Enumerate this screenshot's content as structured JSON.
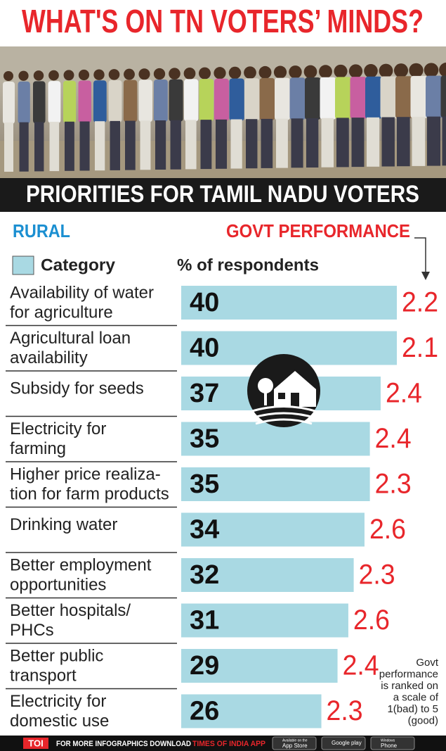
{
  "chart_data": {
    "type": "bar",
    "title": "WHAT'S ON TN VOTERS’ MINDS?",
    "subtitle": "PRIORITIES FOR TAMIL NADU VOTERS",
    "section": "RURAL",
    "category_label": "Category",
    "categories": [
      [
        "Availability of water",
        "for agriculture"
      ],
      [
        "Agricultural loan",
        "availability"
      ],
      [
        "Subsidy for seeds"
      ],
      [
        "Electricity for",
        "farming"
      ],
      [
        "Higher price realiza-",
        "tion for farm products"
      ],
      [
        "Drinking water"
      ],
      [
        "Better employment",
        "opportunities"
      ],
      [
        "Better hospitals/",
        "PHCs"
      ],
      [
        "Better public",
        "transport"
      ],
      [
        "Electricity for",
        "domestic use"
      ]
    ],
    "series": [
      {
        "name": "% of respondents",
        "color": "#a9d9e3",
        "values": [
          40,
          40,
          37,
          35,
          35,
          34,
          32,
          31,
          29,
          26
        ]
      },
      {
        "name": "GOVT PERFORMANCE",
        "color": "#e8262b",
        "values": [
          2.2,
          2.1,
          2.4,
          2.4,
          2.3,
          2.6,
          2.3,
          2.6,
          2.4,
          2.3
        ]
      }
    ],
    "note": [
      "Govt",
      "performance",
      "is ranked on",
      "a scale of",
      "1(bad) to 5",
      "(good)"
    ],
    "footer": {
      "brand": "TOI",
      "text": "FOR MORE INFOGRAPHICS DOWNLOAD",
      "app": "TIMES OF INDIA APP",
      "badges": [
        [
          "Available on the",
          "App Store"
        ],
        [
          "Google play"
        ],
        [
          "Windows",
          "Phone"
        ]
      ]
    }
  }
}
